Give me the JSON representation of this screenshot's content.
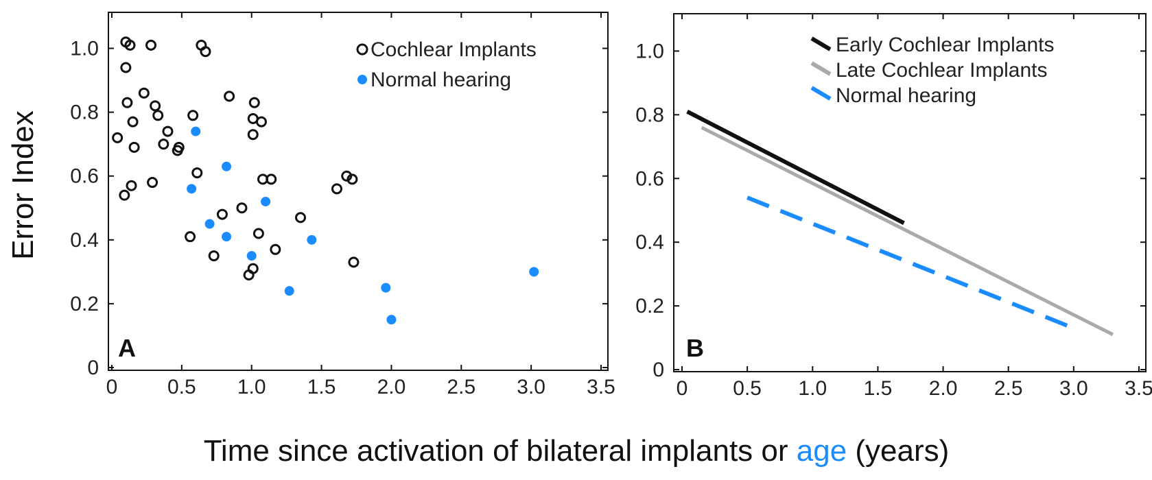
{
  "colors": {
    "black": "#111111",
    "blue": "#1a8cff",
    "gray": "#aaaaaa"
  },
  "figure": {
    "y_axis_label": "Error Index",
    "x_axis_label": {
      "prefix": "Time since activation of bilateral implants or ",
      "highlight": "age",
      "suffix": " (years)"
    }
  },
  "chart_data": [
    {
      "panel": "A",
      "type": "scatter",
      "xlim": [
        0,
        3.5
      ],
      "ylim": [
        0,
        1.1
      ],
      "x_ticks": [
        0,
        0.5,
        1.0,
        1.5,
        2.0,
        2.5,
        3.0,
        3.5
      ],
      "x_tick_labels": [
        "0",
        "0.5",
        "1.0",
        "1.5",
        "2.0",
        "2.5",
        "3.0",
        "3.5"
      ],
      "y_ticks": [
        0,
        0.2,
        0.4,
        0.6,
        0.8,
        1.0
      ],
      "y_tick_labels": [
        "0",
        "0.2",
        "0.4",
        "0.6",
        "0.8",
        "1.0"
      ],
      "legend_position": "top-right",
      "series": [
        {
          "name": "Cochlear Implants",
          "marker": "open-circle",
          "points": [
            [
              0.1,
              1.02
            ],
            [
              0.13,
              1.01
            ],
            [
              0.28,
              1.01
            ],
            [
              0.64,
              1.01
            ],
            [
              0.67,
              0.99
            ],
            [
              0.1,
              0.94
            ],
            [
              0.23,
              0.86
            ],
            [
              0.84,
              0.85
            ],
            [
              0.11,
              0.83
            ],
            [
              0.31,
              0.82
            ],
            [
              1.02,
              0.83
            ],
            [
              0.58,
              0.79
            ],
            [
              0.33,
              0.79
            ],
            [
              0.15,
              0.77
            ],
            [
              1.01,
              0.78
            ],
            [
              1.07,
              0.77
            ],
            [
              0.4,
              0.74
            ],
            [
              1.01,
              0.73
            ],
            [
              0.04,
              0.72
            ],
            [
              0.37,
              0.7
            ],
            [
              0.16,
              0.69
            ],
            [
              0.47,
              0.68
            ],
            [
              0.48,
              0.69
            ],
            [
              0.61,
              0.61
            ],
            [
              1.08,
              0.59
            ],
            [
              1.14,
              0.59
            ],
            [
              1.68,
              0.6
            ],
            [
              1.72,
              0.59
            ],
            [
              0.29,
              0.58
            ],
            [
              0.14,
              0.57
            ],
            [
              0.09,
              0.54
            ],
            [
              1.61,
              0.56
            ],
            [
              0.93,
              0.5
            ],
            [
              0.79,
              0.48
            ],
            [
              1.35,
              0.47
            ],
            [
              0.56,
              0.41
            ],
            [
              1.05,
              0.42
            ],
            [
              1.17,
              0.37
            ],
            [
              0.73,
              0.35
            ],
            [
              1.73,
              0.33
            ],
            [
              0.98,
              0.29
            ],
            [
              1.01,
              0.31
            ]
          ]
        },
        {
          "name": "Normal hearing",
          "marker": "filled-circle",
          "points": [
            [
              0.6,
              0.74
            ],
            [
              0.82,
              0.63
            ],
            [
              0.57,
              0.56
            ],
            [
              1.1,
              0.52
            ],
            [
              0.7,
              0.45
            ],
            [
              0.82,
              0.41
            ],
            [
              1.43,
              0.4
            ],
            [
              1.0,
              0.35
            ],
            [
              1.27,
              0.24
            ],
            [
              1.96,
              0.25
            ],
            [
              2.0,
              0.15
            ],
            [
              3.02,
              0.3
            ]
          ]
        }
      ]
    },
    {
      "panel": "B",
      "type": "line",
      "xlim": [
        0,
        3.5
      ],
      "ylim": [
        0,
        1.1
      ],
      "x_ticks": [
        0,
        0.5,
        1.0,
        1.5,
        2.0,
        2.5,
        3.0,
        3.5
      ],
      "x_tick_labels": [
        "0",
        "0.5",
        "1.0",
        "1.5",
        "2.0",
        "2.5",
        "3.0",
        "3.5"
      ],
      "y_ticks": [
        0,
        0.2,
        0.4,
        0.6,
        0.8,
        1.0
      ],
      "y_tick_labels": [
        "0",
        "0.2",
        "0.4",
        "0.6",
        "0.8",
        "1.0"
      ],
      "legend_position": "top-right",
      "series": [
        {
          "name": "Early Cochlear Implants",
          "style": "solid-black",
          "x": [
            0.04,
            1.7
          ],
          "y": [
            0.81,
            0.46
          ]
        },
        {
          "name": "Late Cochlear Implants",
          "style": "solid-gray",
          "x": [
            0.15,
            3.3
          ],
          "y": [
            0.76,
            0.11
          ]
        },
        {
          "name": "Normal hearing",
          "style": "dashed-blue",
          "x": [
            0.5,
            3.0
          ],
          "y": [
            0.54,
            0.13
          ]
        }
      ]
    }
  ]
}
